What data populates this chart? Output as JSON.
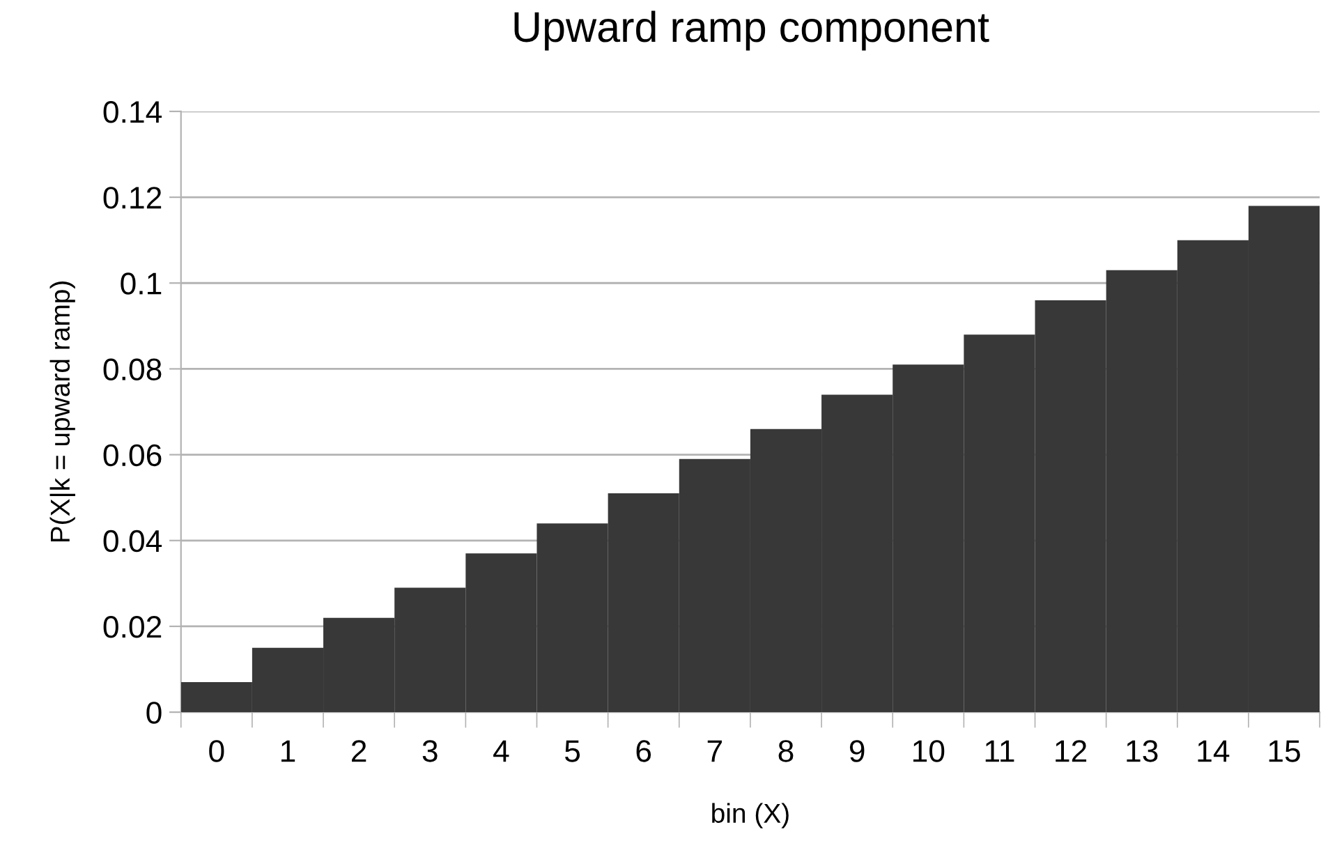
{
  "chart_data": {
    "type": "bar",
    "title": "Upward ramp component",
    "xlabel": "bin (X)",
    "ylabel": "P(X|k = upward ramp)",
    "categories": [
      "0",
      "1",
      "2",
      "3",
      "4",
      "5",
      "6",
      "7",
      "8",
      "9",
      "10",
      "11",
      "12",
      "13",
      "14",
      "15"
    ],
    "values": [
      0.007,
      0.015,
      0.022,
      0.029,
      0.037,
      0.044,
      0.051,
      0.059,
      0.066,
      0.074,
      0.081,
      0.088,
      0.096,
      0.103,
      0.11,
      0.118
    ],
    "color": "#383838",
    "ylim": [
      0,
      0.14
    ],
    "yticks": [
      {
        "value": 0,
        "label": "0"
      },
      0.02,
      0.04,
      0.06,
      0.08,
      {
        "value": 0.1,
        "label": "0.1"
      },
      0.12,
      0.14
    ],
    "grid": "y"
  }
}
